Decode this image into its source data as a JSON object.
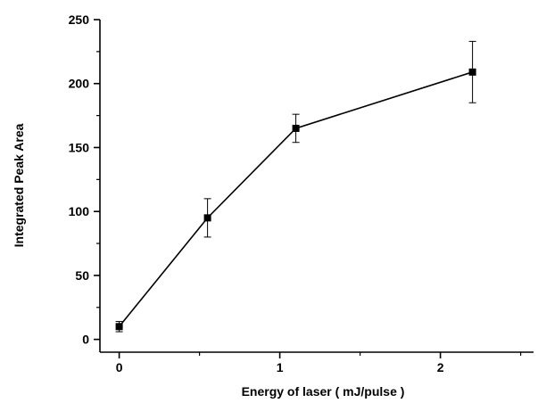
{
  "chart_data": {
    "type": "line",
    "xlabel": "Energy of laser ( mJ/pulse )",
    "ylabel": "Integrated Peak Area",
    "xlim": [
      -0.12,
      2.58
    ],
    "ylim": [
      -10,
      250
    ],
    "x_ticks": [
      0,
      1,
      2
    ],
    "x_tick_labels": [
      "0",
      "1",
      "2"
    ],
    "y_ticks": [
      0,
      50,
      100,
      150,
      200,
      250
    ],
    "y_tick_labels": [
      "0",
      "50",
      "100",
      "150",
      "200",
      "250"
    ],
    "grid": false,
    "legend": "none",
    "marker": "square",
    "line_color": "#000000",
    "series": [
      {
        "x": [
          0,
          0.55,
          1.1,
          2.2
        ],
        "y": [
          10,
          95,
          165,
          209
        ],
        "error": [
          4,
          15,
          11,
          24
        ]
      }
    ]
  }
}
